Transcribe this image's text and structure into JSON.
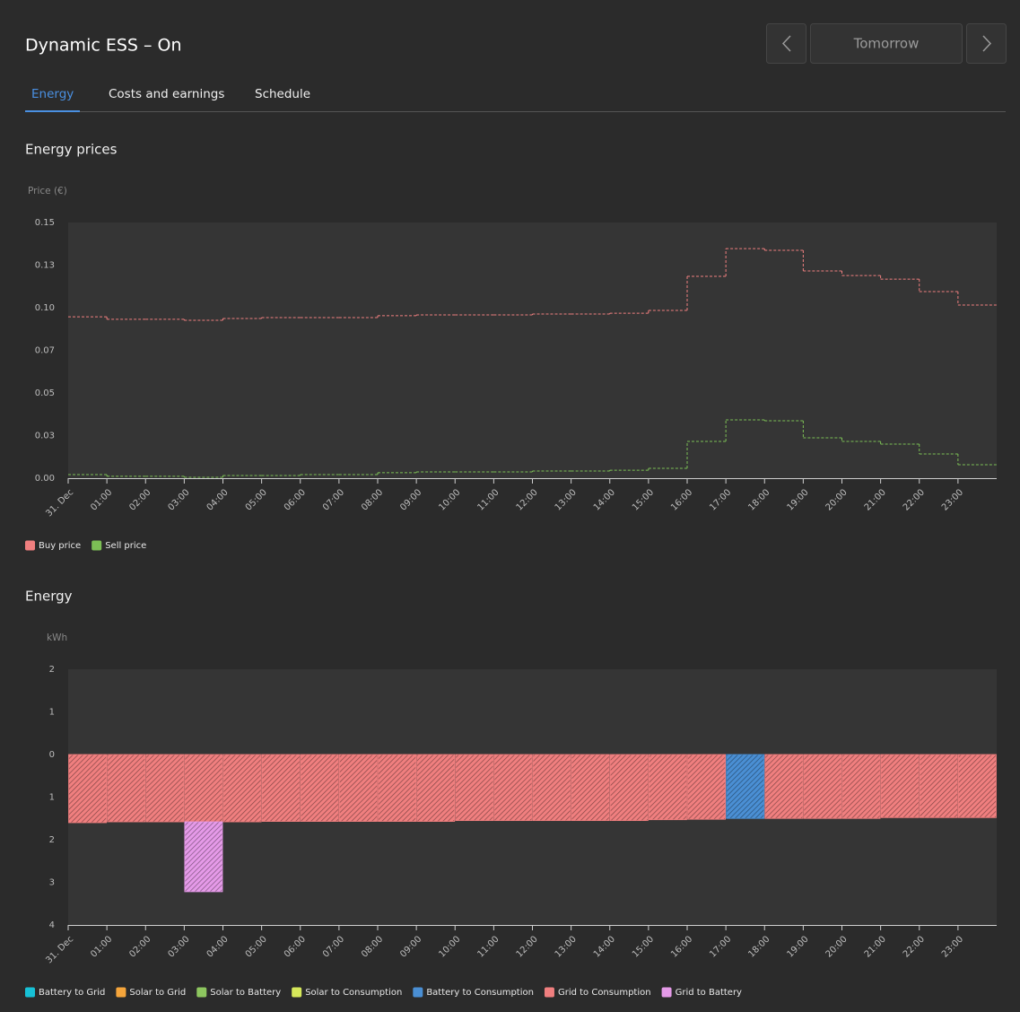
{
  "header": {
    "title": "Dynamic ESS – On",
    "date_button": "Tomorrow"
  },
  "tabs": [
    "Energy",
    "Costs and earnings",
    "Schedule"
  ],
  "chart_data": [
    {
      "type": "step-line",
      "title": "Energy prices",
      "y_label": "Price (€)",
      "categories": [
        "31. Dec",
        "01:00",
        "02:00",
        "03:00",
        "04:00",
        "05:00",
        "06:00",
        "07:00",
        "08:00",
        "09:00",
        "10:00",
        "11:00",
        "12:00",
        "13:00",
        "14:00",
        "15:00",
        "16:00",
        "17:00",
        "18:00",
        "19:00",
        "20:00",
        "21:00",
        "22:00",
        "23:00"
      ],
      "series": [
        {
          "name": "Buy price",
          "color": "#f07f7f",
          "values": [
            0.0947,
            0.0932,
            0.0932,
            0.0926,
            0.0937,
            0.0942,
            0.0942,
            0.0942,
            0.0953,
            0.0958,
            0.0958,
            0.0958,
            0.0963,
            0.0963,
            0.0968,
            0.0984,
            0.1184,
            0.1347,
            0.1337,
            0.1216,
            0.1189,
            0.1168,
            0.1095,
            0.1016
          ]
        },
        {
          "name": "Sell price",
          "color": "#7cbf55",
          "values": [
            0.0021,
            0.0011,
            0.0011,
            0.0005,
            0.0016,
            0.0016,
            0.0021,
            0.0021,
            0.0032,
            0.0037,
            0.0037,
            0.0037,
            0.0042,
            0.0042,
            0.0047,
            0.0058,
            0.0216,
            0.0342,
            0.0337,
            0.0237,
            0.0216,
            0.02,
            0.0142,
            0.0079
          ]
        }
      ],
      "ylim": [
        0,
        0.15
      ],
      "yticks": [
        {
          "value": 0,
          "label": "0.00"
        },
        {
          "value": 0.025,
          "label": "0.03"
        },
        0.05,
        {
          "value": 0.075,
          "label": "0.07"
        },
        {
          "value": 0.1,
          "label": "0.10"
        },
        {
          "value": 0.125,
          "label": "0.13"
        },
        0.15
      ],
      "grid": false
    },
    {
      "type": "stacked-bar",
      "title": "Energy",
      "y_label": "kWh",
      "categories": [
        "31. Dec",
        "01:00",
        "02:00",
        "03:00",
        "04:00",
        "05:00",
        "06:00",
        "07:00",
        "08:00",
        "09:00",
        "10:00",
        "11:00",
        "12:00",
        "13:00",
        "14:00",
        "15:00",
        "16:00",
        "17:00",
        "18:00",
        "19:00",
        "20:00",
        "21:00",
        "22:00",
        "23:00"
      ],
      "series": [
        {
          "name": "Battery to Grid",
          "color": "#17c1d6",
          "values": [
            0,
            0,
            0,
            0,
            0,
            0,
            0,
            0,
            0,
            0,
            0,
            0,
            0,
            0,
            0,
            0,
            0,
            0,
            0,
            0,
            0,
            0,
            0,
            0
          ]
        },
        {
          "name": "Solar to Grid",
          "color": "#f5a53b",
          "values": [
            0,
            0,
            0,
            0,
            0,
            0,
            0,
            0,
            0,
            0,
            0,
            0,
            0,
            0,
            0,
            0,
            0,
            0,
            0,
            0,
            0,
            0,
            0,
            0
          ]
        },
        {
          "name": "Solar to Battery",
          "color": "#8dc65f",
          "values": [
            0,
            0,
            0,
            0,
            0,
            0,
            0,
            0,
            0,
            0,
            0,
            0,
            0,
            0,
            0,
            0,
            0,
            0,
            0,
            0,
            0,
            0,
            0,
            0
          ]
        },
        {
          "name": "Solar to Consumption",
          "color": "#d6e85a",
          "values": [
            0,
            0,
            0,
            0,
            0,
            0,
            0,
            0,
            0,
            0,
            0,
            0,
            0,
            0,
            0,
            0,
            0,
            0,
            0,
            0,
            0,
            0,
            0,
            0
          ]
        },
        {
          "name": "Battery to Consumption",
          "color": "#4a8fd4",
          "values": [
            0,
            0,
            0,
            0,
            0,
            0,
            0,
            0,
            0,
            0,
            0,
            0,
            0,
            0,
            0,
            0,
            0,
            -1.5,
            0,
            0,
            0,
            0,
            0,
            0
          ]
        },
        {
          "name": "Grid to Consumption",
          "color": "#f07f7f",
          "values": [
            -1.6,
            -1.58,
            -1.58,
            -1.58,
            -1.58,
            -1.57,
            -1.57,
            -1.57,
            -1.57,
            -1.57,
            -1.55,
            -1.55,
            -1.55,
            -1.55,
            -1.55,
            -1.53,
            -1.52,
            0,
            -1.5,
            -1.5,
            -1.5,
            -1.48,
            -1.48,
            -1.48
          ]
        },
        {
          "name": "Grid to Battery",
          "color": "#e59ae8",
          "values": [
            0,
            0,
            0,
            -1.64,
            0,
            0,
            0,
            0,
            0,
            0,
            0,
            0,
            0,
            0,
            0,
            0,
            0,
            0,
            0,
            0,
            0,
            0,
            0,
            0
          ]
        }
      ],
      "ylim": [
        -4,
        2
      ],
      "yticks": [
        2,
        1,
        0,
        {
          "value": -1,
          "label": "1"
        },
        {
          "value": -2,
          "label": "2"
        },
        {
          "value": -3,
          "label": "3"
        },
        {
          "value": -4,
          "label": "4"
        }
      ],
      "grid": false
    }
  ]
}
